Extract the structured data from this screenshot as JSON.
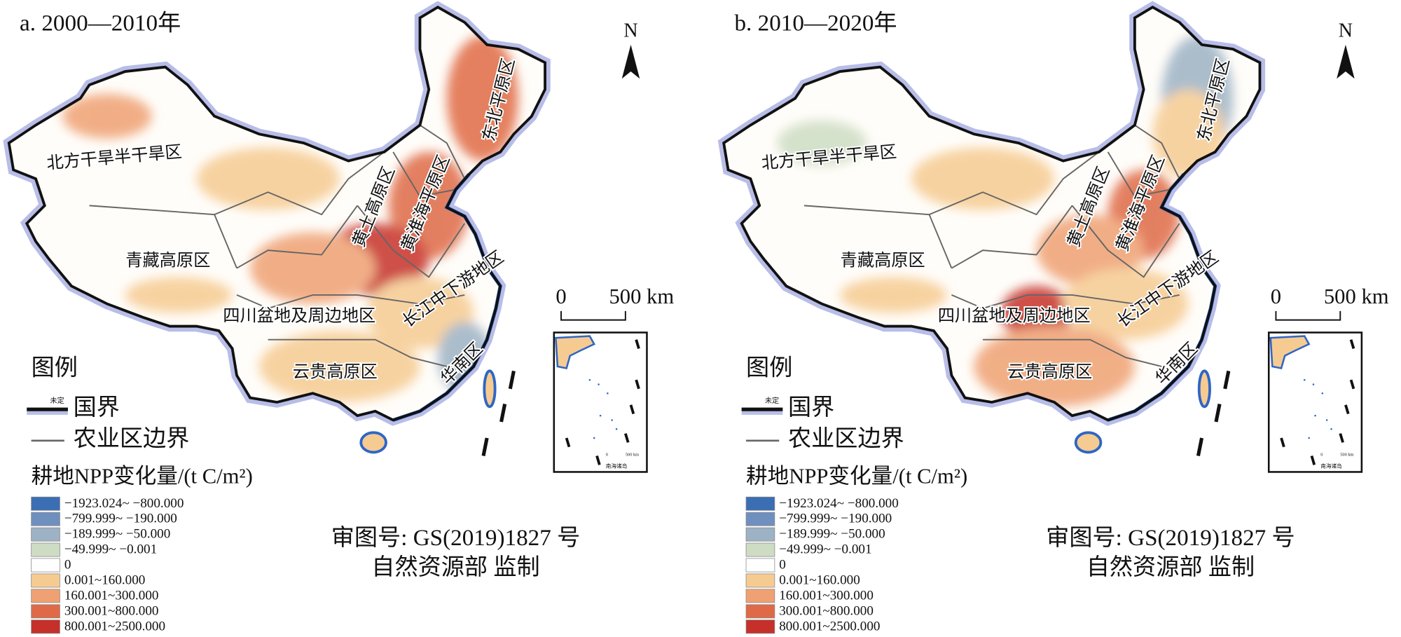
{
  "panels": [
    {
      "title": "a. 2000—2010年",
      "regions": [
        "北方干旱半干旱区",
        "青藏高原区",
        "黄土高原区",
        "黄淮海平原区",
        "东北平原区",
        "四川盆地及周边地区",
        "长江中下游地区",
        "云贵高原区",
        "华南区"
      ]
    },
    {
      "title": "b. 2010—2020年",
      "regions": [
        "北方干旱半干旱区",
        "青藏高原区",
        "黄土高原区",
        "黄淮海平原区",
        "东北平原区",
        "四川盆地及周边地区",
        "长江中下游地区",
        "云贵高原区",
        "华南区"
      ]
    }
  ],
  "north": "N",
  "scale_bar": {
    "zero": "0",
    "length": "500 km"
  },
  "inset": {
    "label": "南海诸岛",
    "zero": "0",
    "length": "500 km"
  },
  "legend": {
    "title": "图例",
    "border": {
      "label": "国界",
      "note": "未定"
    },
    "zone_border": "农业区边界",
    "npp_title": "耕地NPP变化量/(t C/m²)",
    "classes": [
      {
        "label": "−1923.024~ −800.000",
        "color": "#3c6eb4"
      },
      {
        "label": "−799.999~ −190.000",
        "color": "#6f8fbf"
      },
      {
        "label": "−189.999~ −50.000",
        "color": "#9db2c4"
      },
      {
        "label": "−49.999~ −0.001",
        "color": "#cddcc3"
      },
      {
        "label": "0",
        "color": "#ffffff"
      },
      {
        "label": "0.001~160.000",
        "color": "#f6cb92"
      },
      {
        "label": "160.001~300.000",
        "color": "#efa173"
      },
      {
        "label": "300.001~800.000",
        "color": "#df6a47"
      },
      {
        "label": "800.001~2500.000",
        "color": "#c6302a"
      }
    ]
  },
  "approval": [
    "审图号: GS(2019)1827 号",
    "自然资源部 监制"
  ]
}
